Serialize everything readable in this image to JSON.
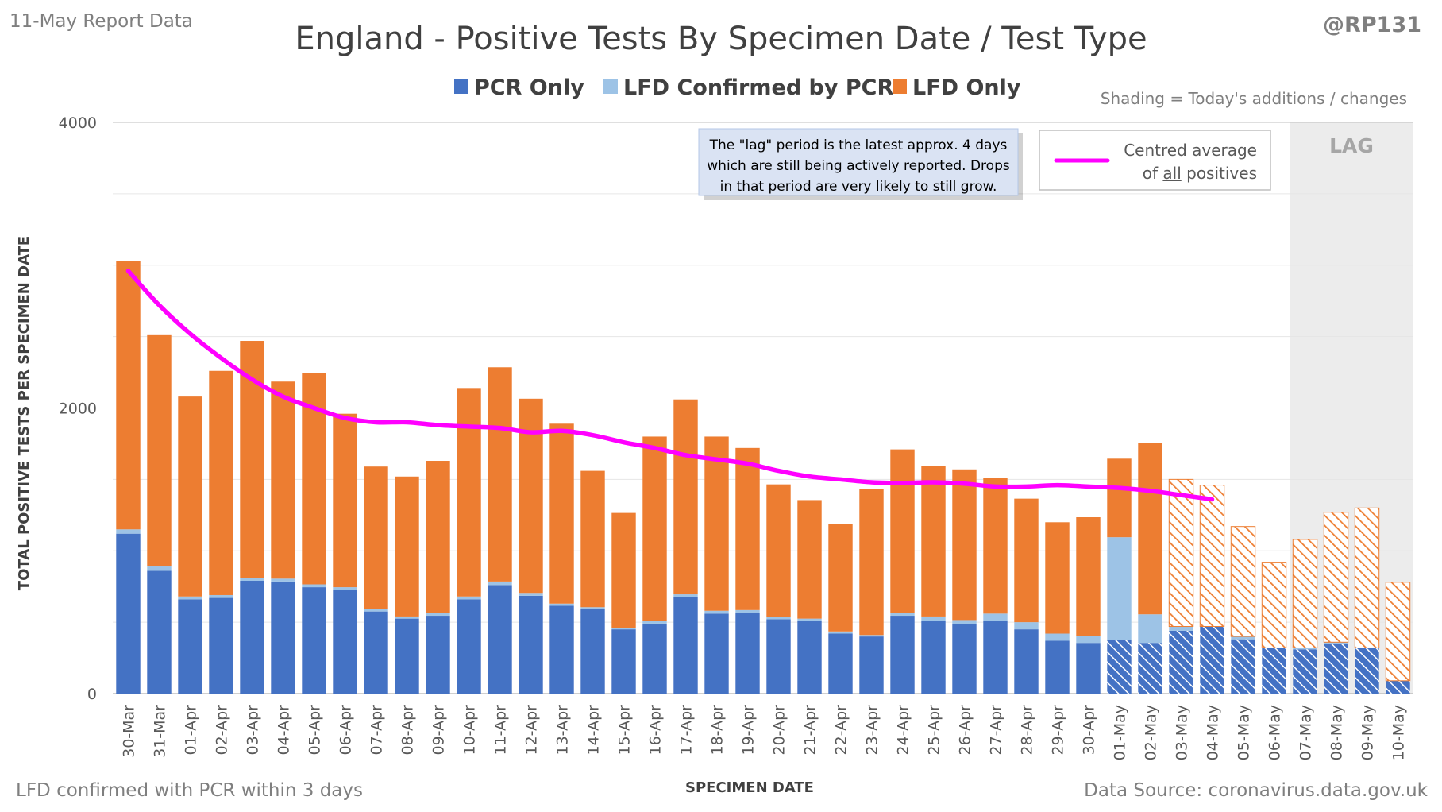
{
  "header": {
    "report_date": "11-May Report Data",
    "handle": "@RP131",
    "title": "England - Positive Tests By Specimen Date / Test Type",
    "shading_note": "Shading = Today's additions / changes"
  },
  "footer": {
    "left_note": "LFD confirmed with PCR within 3 days",
    "source": "Data Source: coronavirus.data.gov.uk"
  },
  "annotations": {
    "lag_note_lines": [
      "The \"lag\" period is the latest approx. 4 days",
      "which are still being actively reported. Drops",
      "in that period are very likely to still grow."
    ],
    "average_legend_line1": "Centred average",
    "average_legend_line2_pre": "of ",
    "average_legend_line2_underlined": "all",
    "average_legend_line2_post": " positives",
    "lag_label": "LAG"
  },
  "colors": {
    "pcr_only": "#4472c4",
    "lfd_confirmed": "#9dc3e6",
    "lfd_only": "#ed7d31",
    "average_line": "#ff00ff",
    "lag_shade": "#ececec",
    "gridline": "#d9d9d9"
  },
  "chart_data": {
    "type": "bar",
    "stacked": true,
    "title": "England - Positive Tests By Specimen Date / Test Type",
    "xlabel": "SPECIMEN DATE",
    "ylabel": "TOTAL POSITIVE TESTS PER SPECIMEN DATE",
    "ylim": [
      0,
      4000
    ],
    "yticks": [
      0,
      2000,
      4000
    ],
    "grid": true,
    "legend_position": "top",
    "categories": [
      "30-Mar",
      "31-Mar",
      "01-Apr",
      "02-Apr",
      "03-Apr",
      "04-Apr",
      "05-Apr",
      "06-Apr",
      "07-Apr",
      "08-Apr",
      "09-Apr",
      "10-Apr",
      "11-Apr",
      "12-Apr",
      "13-Apr",
      "14-Apr",
      "15-Apr",
      "16-Apr",
      "17-Apr",
      "18-Apr",
      "19-Apr",
      "20-Apr",
      "21-Apr",
      "22-Apr",
      "23-Apr",
      "24-Apr",
      "25-Apr",
      "26-Apr",
      "27-Apr",
      "28-Apr",
      "29-Apr",
      "30-Apr",
      "01-May",
      "02-May",
      "03-May",
      "04-May",
      "05-May",
      "06-May",
      "07-May",
      "08-May",
      "09-May",
      "10-May"
    ],
    "series": [
      {
        "name": "PCR Only",
        "values": [
          1120,
          860,
          660,
          670,
          790,
          785,
          745,
          725,
          575,
          525,
          545,
          660,
          760,
          685,
          615,
          595,
          450,
          490,
          675,
          560,
          565,
          520,
          510,
          420,
          400,
          545,
          510,
          485,
          510,
          450,
          370,
          355,
          375,
          355,
          440,
          470,
          380,
          320,
          310,
          350,
          320,
          90
        ]
      },
      {
        "name": "LFD Confirmed by PCR",
        "values": [
          30,
          30,
          20,
          20,
          20,
          20,
          20,
          20,
          15,
          15,
          20,
          20,
          25,
          20,
          15,
          10,
          10,
          20,
          20,
          20,
          20,
          15,
          15,
          15,
          10,
          20,
          30,
          30,
          50,
          50,
          50,
          50,
          720,
          200,
          30,
          0,
          20,
          0,
          10,
          10,
          0,
          0
        ]
      },
      {
        "name": "LFD Only",
        "values": [
          1880,
          1620,
          1400,
          1570,
          1660,
          1380,
          1480,
          1215,
          1000,
          980,
          1065,
          1460,
          1500,
          1360,
          1260,
          955,
          805,
          1290,
          1365,
          1220,
          1135,
          930,
          830,
          755,
          1020,
          1145,
          1055,
          1055,
          950,
          865,
          780,
          830,
          550,
          1200,
          1030,
          990,
          770,
          600,
          760,
          910,
          980,
          690
        ]
      }
    ],
    "lag_categories": [
      "07-May",
      "08-May",
      "09-May",
      "10-May"
    ],
    "average_line": {
      "name": "Centred average of all positives",
      "categories": [
        "30-Mar",
        "31-Mar",
        "01-Apr",
        "02-Apr",
        "03-Apr",
        "04-Apr",
        "05-Apr",
        "06-Apr",
        "07-Apr",
        "08-Apr",
        "09-Apr",
        "10-Apr",
        "11-Apr",
        "12-Apr",
        "13-Apr",
        "14-Apr",
        "15-Apr",
        "16-Apr",
        "17-Apr",
        "18-Apr",
        "19-Apr",
        "20-Apr",
        "21-Apr",
        "22-Apr",
        "23-Apr",
        "24-Apr",
        "25-Apr",
        "26-Apr",
        "27-Apr",
        "28-Apr",
        "29-Apr",
        "30-Apr",
        "01-May",
        "02-May",
        "03-May",
        "04-May"
      ],
      "values": [
        2960,
        2720,
        2520,
        2350,
        2200,
        2080,
        2000,
        1930,
        1900,
        1900,
        1880,
        1870,
        1860,
        1830,
        1840,
        1810,
        1760,
        1720,
        1670,
        1640,
        1610,
        1560,
        1520,
        1500,
        1480,
        1475,
        1480,
        1470,
        1450,
        1450,
        1460,
        1450,
        1440,
        1420,
        1390,
        1360
      ]
    },
    "legend": [
      {
        "label": "PCR Only",
        "color": "#4472c4"
      },
      {
        "label": "LFD Confirmed by PCR",
        "color": "#9dc3e6"
      },
      {
        "label": "LFD Only",
        "color": "#ed7d31"
      }
    ]
  }
}
